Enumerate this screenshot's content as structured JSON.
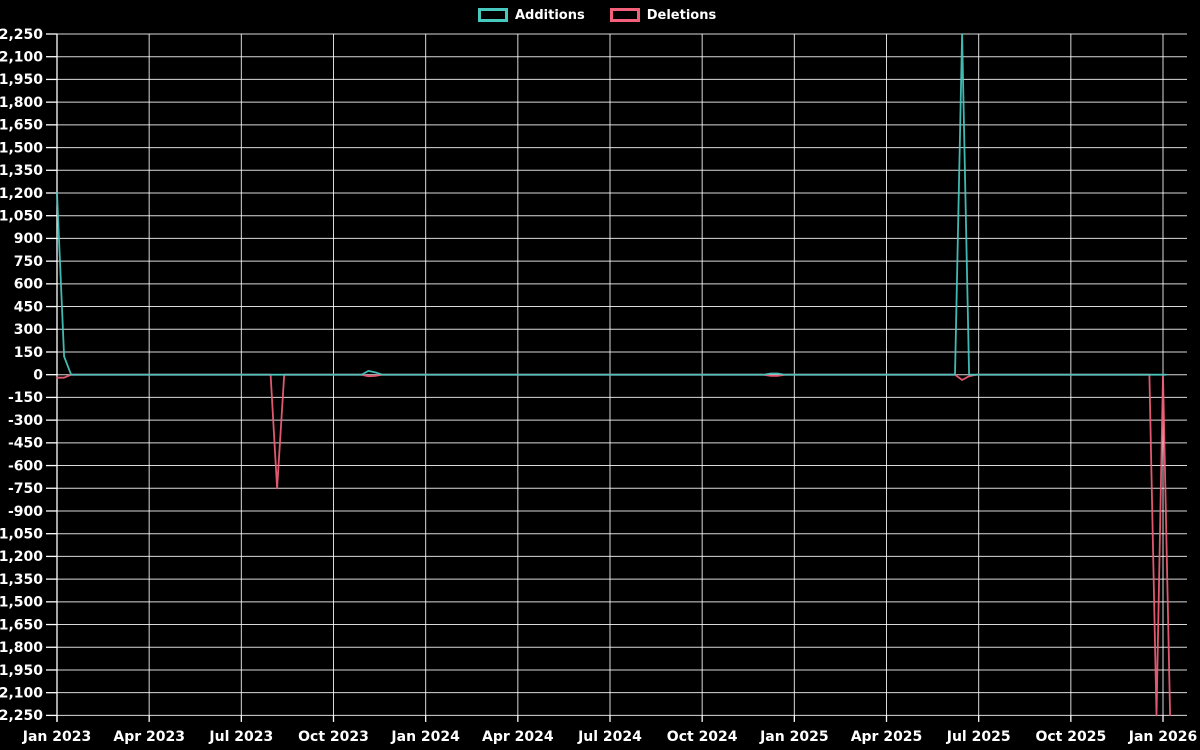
{
  "legend": [
    {
      "label": "Additions",
      "color": "#47c9c0"
    },
    {
      "label": "Deletions",
      "color": "#f2607a"
    }
  ],
  "colors": {
    "background": "#000000",
    "grid": "#ffffff",
    "text": "#ffffff",
    "additions": "#47c9c0",
    "deletions": "#f2607a"
  },
  "chart_data": {
    "type": "line",
    "title": "",
    "xlabel": "",
    "ylabel": "",
    "grid": true,
    "legend_position": "top",
    "x_axis": {
      "start": "Jan 2023",
      "end": "Jan 2026",
      "tick_interval": "3 months",
      "tick_labels": [
        "Jan 2023",
        "Apr 2023",
        "Jul 2023",
        "Oct 2023",
        "Jan 2024",
        "Apr 2024",
        "Jul 2024",
        "Oct 2024",
        "Jan 2025",
        "Apr 2025",
        "Jul 2025",
        "Oct 2025",
        "Jan 2026"
      ]
    },
    "y_axis": {
      "min": -2250,
      "max": 2250,
      "step": 150,
      "tick_labels": [
        "2,250",
        "2,100",
        "1,950",
        "1,800",
        "1,650",
        "1,500",
        "1,350",
        "1,200",
        "1,050",
        "900",
        "750",
        "600",
        "450",
        "300",
        "150",
        "0",
        "-150",
        "-300",
        "-450",
        "-600",
        "-750",
        "-900",
        "-1,050",
        "-1,200",
        "-1,350",
        "-1,500",
        "-1,650",
        "-1,800",
        "-1,950",
        "-2,100",
        "-2,250"
      ]
    },
    "series": [
      {
        "name": "Additions",
        "color": "#47c9c0",
        "points": [
          [
            "2023-01-01",
            1200
          ],
          [
            "2023-01-08",
            120
          ],
          [
            "2023-01-15",
            0
          ],
          [
            "2023-10-29",
            0
          ],
          [
            "2023-11-05",
            25
          ],
          [
            "2023-11-12",
            15
          ],
          [
            "2023-11-19",
            0
          ],
          [
            "2024-12-01",
            0
          ],
          [
            "2024-12-08",
            8
          ],
          [
            "2024-12-15",
            8
          ],
          [
            "2024-12-22",
            0
          ],
          [
            "2025-06-08",
            0
          ],
          [
            "2025-06-15",
            2250
          ],
          [
            "2025-06-22",
            0
          ],
          [
            "2026-01-04",
            0
          ]
        ]
      },
      {
        "name": "Deletions",
        "color": "#f2607a",
        "points": [
          [
            "2023-01-01",
            -20
          ],
          [
            "2023-01-08",
            -20
          ],
          [
            "2023-01-15",
            0
          ],
          [
            "2023-07-30",
            0
          ],
          [
            "2023-08-06",
            -750
          ],
          [
            "2023-08-13",
            0
          ],
          [
            "2023-10-29",
            0
          ],
          [
            "2023-11-05",
            -10
          ],
          [
            "2023-11-12",
            -8
          ],
          [
            "2023-11-19",
            0
          ],
          [
            "2024-12-01",
            0
          ],
          [
            "2024-12-08",
            -8
          ],
          [
            "2024-12-15",
            -8
          ],
          [
            "2024-12-22",
            0
          ],
          [
            "2025-06-08",
            0
          ],
          [
            "2025-06-15",
            -35
          ],
          [
            "2025-06-22",
            -10
          ],
          [
            "2025-06-29",
            0
          ],
          [
            "2025-12-18",
            0
          ],
          [
            "2025-12-25",
            -2250
          ],
          [
            "2026-01-01",
            0
          ],
          [
            "2026-01-08",
            -2250
          ]
        ]
      }
    ]
  }
}
